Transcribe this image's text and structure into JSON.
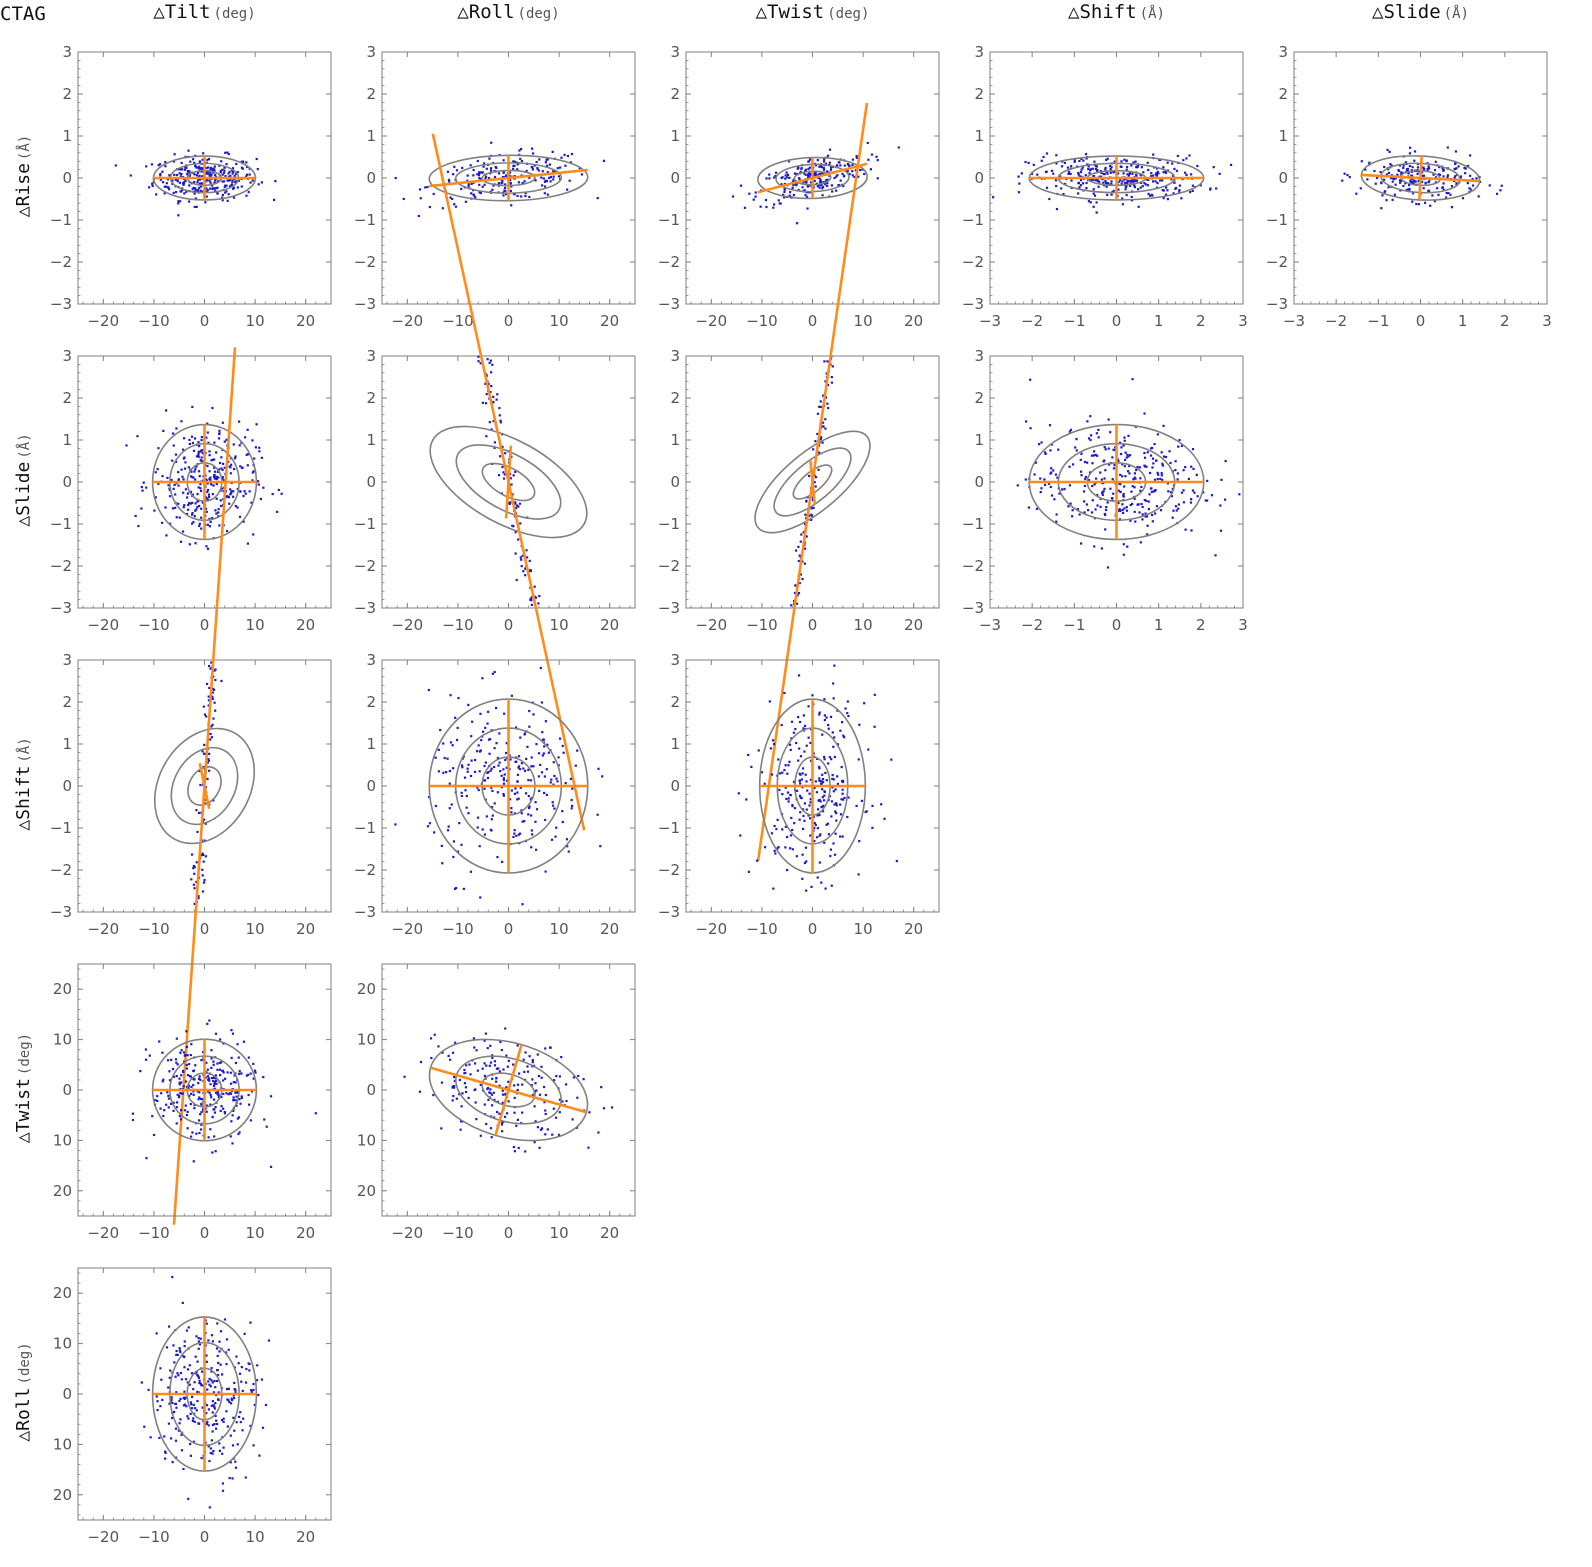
{
  "figure": {
    "label": "CTAG",
    "column_headers": [
      [
        "△Tilt",
        "(deg)"
      ],
      [
        "△Roll",
        "(deg)"
      ],
      [
        "△Twist",
        "(deg)"
      ],
      [
        "△Shift",
        "(Å)"
      ],
      [
        "△Slide",
        "(Å)"
      ]
    ],
    "row_headers": [
      [
        "△Rise",
        "(Å)"
      ],
      [
        "△Slide",
        "(Å)"
      ],
      [
        "△Shift",
        "(Å)"
      ],
      [
        "△Twist",
        "(deg)"
      ],
      [
        "△Roll",
        "(deg)"
      ]
    ]
  },
  "colors": {
    "points": "#1a1acc",
    "ellipse": "#808080",
    "axes_lines": "#ff8c1a",
    "frame": "#7f7f7f",
    "tick_text": "#555555"
  },
  "chart_data": [
    {
      "type": "scatter",
      "row": 0,
      "col": 0,
      "xlim": [
        -25,
        25
      ],
      "ylim": [
        -3,
        3
      ],
      "xticks": [
        "−20",
        "−10",
        "0",
        "10",
        "20"
      ],
      "yticks": [
        "−3",
        "−2",
        "−1",
        "0",
        "1",
        "2",
        "3"
      ],
      "center": [
        0,
        0
      ],
      "sd": [
        5.6,
        0.29
      ],
      "angle_deg": 0,
      "n_points": 300
    },
    {
      "type": "scatter",
      "row": 0,
      "col": 1,
      "xlim": [
        -25,
        25
      ],
      "ylim": [
        -3,
        3
      ],
      "xticks": [
        "−20",
        "−10",
        "0",
        "10",
        "20"
      ],
      "yticks": [
        "−3",
        "−2",
        "−1",
        "0",
        "1",
        "2",
        "3"
      ],
      "center": [
        0,
        0
      ],
      "sd": [
        8.7,
        0.3
      ],
      "angle_deg": 0.7,
      "n_points": 220
    },
    {
      "type": "scatter",
      "row": 0,
      "col": 2,
      "xlim": [
        -25,
        25
      ],
      "ylim": [
        -3,
        3
      ],
      "xticks": [
        "−20",
        "−10",
        "0",
        "10",
        "20"
      ],
      "yticks": [
        "−3",
        "−2",
        "−1",
        "0",
        "1",
        "2",
        "3"
      ],
      "center": [
        0,
        0
      ],
      "sd": [
        6,
        0.27
      ],
      "angle_deg": 1.8,
      "n_points": 240
    },
    {
      "type": "scatter",
      "row": 0,
      "col": 3,
      "xlim": [
        -3,
        3
      ],
      "ylim": [
        -3,
        3
      ],
      "xticks": [
        "−3",
        "−2",
        "−1",
        "0",
        "1",
        "2",
        "3"
      ],
      "yticks": [
        "−3",
        "−2",
        "−1",
        "0",
        "1",
        "2",
        "3"
      ],
      "center": [
        0,
        0
      ],
      "sd": [
        1.15,
        0.29
      ],
      "angle_deg": 0,
      "n_points": 320
    },
    {
      "type": "scatter",
      "row": 0,
      "col": 4,
      "xlim": [
        -3,
        3
      ],
      "ylim": [
        -3,
        3
      ],
      "xticks": [
        "−3",
        "−2",
        "−1",
        "0",
        "1",
        "2",
        "3"
      ],
      "yticks": [
        "−3",
        "−2",
        "−1",
        "0",
        "1",
        "2",
        "3"
      ],
      "center": [
        0,
        0
      ],
      "sd": [
        0.78,
        0.29
      ],
      "angle_deg": -3,
      "n_points": 220
    },
    {
      "type": "scatter",
      "row": 1,
      "col": 0,
      "xlim": [
        -25,
        25
      ],
      "ylim": [
        -3,
        3
      ],
      "xticks": [
        "−20",
        "−10",
        "0",
        "10",
        "20"
      ],
      "yticks": [
        "−3",
        "−2",
        "−1",
        "0",
        "1",
        "2",
        "3"
      ],
      "center": [
        0,
        0
      ],
      "sd": [
        5.7,
        0.76
      ],
      "angle_deg": 0,
      "n_points": 320
    },
    {
      "type": "scatter",
      "row": 1,
      "col": 1,
      "xlim": [
        -25,
        25
      ],
      "ylim": [
        -3,
        3
      ],
      "xticks": [
        "−20",
        "−10",
        "0",
        "10",
        "20"
      ],
      "yticks": [
        "−3",
        "−2",
        "−1",
        "0",
        "1",
        "2",
        "3"
      ],
      "center": [
        0,
        0
      ],
      "sd": [
        9.5,
        0.55
      ],
      "angle_deg": -29,
      "n_points": 220
    },
    {
      "type": "scatter",
      "row": 1,
      "col": 2,
      "xlim": [
        -25,
        25
      ],
      "ylim": [
        -3,
        3
      ],
      "xticks": [
        "−20",
        "−10",
        "0",
        "10",
        "20"
      ],
      "yticks": [
        "−3",
        "−2",
        "−1",
        "0",
        "1",
        "2",
        "3"
      ],
      "center": [
        0,
        0
      ],
      "sd": [
        7.8,
        0.38
      ],
      "angle_deg": 40,
      "n_points": 230
    },
    {
      "type": "scatter",
      "row": 1,
      "col": 3,
      "xlim": [
        -3,
        3
      ],
      "ylim": [
        -3,
        3
      ],
      "xticks": [
        "−3",
        "−2",
        "−1",
        "0",
        "1",
        "2",
        "3"
      ],
      "yticks": [
        "−3",
        "−2",
        "−1",
        "0",
        "1",
        "2",
        "3"
      ],
      "center": [
        0,
        0
      ],
      "sd": [
        1.15,
        0.76
      ],
      "angle_deg": 0,
      "n_points": 330
    },
    {
      "type": "scatter",
      "row": 2,
      "col": 0,
      "xlim": [
        -25,
        25
      ],
      "ylim": [
        -3,
        3
      ],
      "xticks": [
        "−20",
        "−10",
        "0",
        "10",
        "20"
      ],
      "yticks": [
        "−3",
        "−2",
        "−1",
        "0",
        "1",
        "2",
        "3"
      ],
      "center": [
        0,
        0
      ],
      "sd": [
        6.7,
        0.6
      ],
      "angle_deg": 60,
      "n_points": 260
    },
    {
      "type": "scatter",
      "row": 2,
      "col": 1,
      "xlim": [
        -25,
        25
      ],
      "ylim": [
        -3,
        3
      ],
      "xticks": [
        "−20",
        "−10",
        "0",
        "10",
        "20"
      ],
      "yticks": [
        "−3",
        "−2",
        "−1",
        "0",
        "1",
        "2",
        "3"
      ],
      "center": [
        0,
        0
      ],
      "sd": [
        8.7,
        1.15
      ],
      "angle_deg": 0,
      "n_points": 280
    },
    {
      "type": "scatter",
      "row": 2,
      "col": 2,
      "xlim": [
        -25,
        25
      ],
      "ylim": [
        -3,
        3
      ],
      "xticks": [
        "−20",
        "−10",
        "0",
        "10",
        "20"
      ],
      "yticks": [
        "−3",
        "−2",
        "−1",
        "0",
        "1",
        "2",
        "3"
      ],
      "center": [
        0,
        0
      ],
      "sd": [
        5.8,
        1.15
      ],
      "angle_deg": 0,
      "n_points": 280
    },
    {
      "type": "scatter",
      "row": 3,
      "col": 0,
      "xlim": [
        -25,
        25
      ],
      "ylim": [
        -25,
        25
      ],
      "xticks": [
        "−20",
        "−10",
        "0",
        "10",
        "20"
      ],
      "yticks": [
        "20",
        "10",
        "0",
        "10",
        "20"
      ],
      "center": [
        0,
        0
      ],
      "sd": [
        5.7,
        5.6
      ],
      "angle_deg": 0,
      "n_points": 300
    },
    {
      "type": "scatter",
      "row": 3,
      "col": 1,
      "xlim": [
        -25,
        25
      ],
      "ylim": [
        -25,
        25
      ],
      "xticks": [
        "−20",
        "−10",
        "0",
        "10",
        "20"
      ],
      "yticks": [
        "20",
        "10",
        "0",
        "10",
        "20"
      ],
      "center": [
        0,
        0
      ],
      "sd": [
        8.9,
        5.2
      ],
      "angle_deg": -16,
      "n_points": 220
    },
    {
      "type": "scatter",
      "row": 4,
      "col": 0,
      "xlim": [
        -25,
        25
      ],
      "ylim": [
        -25,
        25
      ],
      "xticks": [
        "−20",
        "−10",
        "0",
        "10",
        "20"
      ],
      "yticks": [
        "20",
        "10",
        "0",
        "10",
        "20"
      ],
      "center": [
        0,
        0
      ],
      "sd": [
        5.7,
        8.5
      ],
      "angle_deg": 0,
      "n_points": 300
    }
  ]
}
